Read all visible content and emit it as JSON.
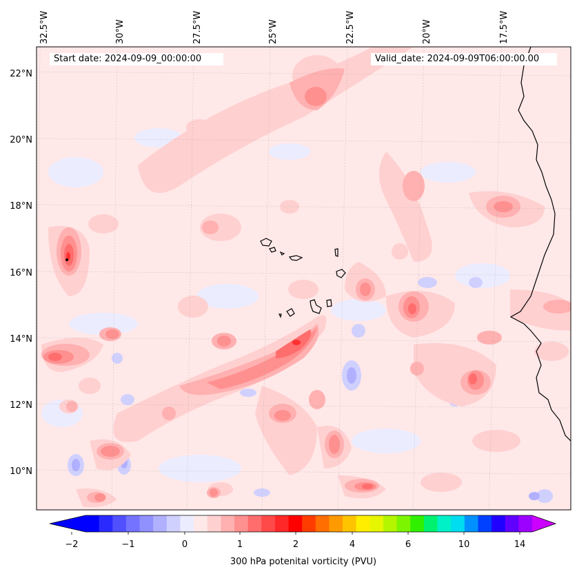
{
  "map": {
    "start_date_label": "Start date: 2024-09-09_00:00:00",
    "valid_date_label": "Valid_date: 2024-09-09T06:00:00.00",
    "longitude_labels": [
      "32.5°W",
      "30°W",
      "27.5°W",
      "25°W",
      "22.5°W",
      "20°W",
      "17.5°W"
    ],
    "latitude_labels": [
      "22°N",
      "20°N",
      "18°N",
      "16°N",
      "14°N",
      "12°N",
      "10°N"
    ]
  },
  "colorbar": {
    "title": "300 hPa potenital vorticity (PVU)",
    "tick_labels": [
      "−2",
      "−1",
      "0",
      "1",
      "2",
      "4",
      "6",
      "10",
      "14"
    ],
    "colors": [
      "#0000ff",
      "#2a2aff",
      "#5050ff",
      "#7373ff",
      "#9090ff",
      "#b0b0ff",
      "#d0d0ff",
      "#ececff",
      "#ffe8e8",
      "#ffd0d0",
      "#ffb0b0",
      "#ff9090",
      "#ff6d6d",
      "#ff4a4a",
      "#ff2828",
      "#ff0000",
      "#ff3c00",
      "#ff6e00",
      "#ff9a00",
      "#ffc400",
      "#ffee00",
      "#e6f500",
      "#b4f500",
      "#7cf500",
      "#30f000",
      "#00f070",
      "#00f0c8",
      "#00dcf0",
      "#0090ff",
      "#0040ff",
      "#2000ff",
      "#6000ff",
      "#9c00ff"
    ],
    "under_color": "#0000ff",
    "over_color": "#cc00ff"
  }
}
